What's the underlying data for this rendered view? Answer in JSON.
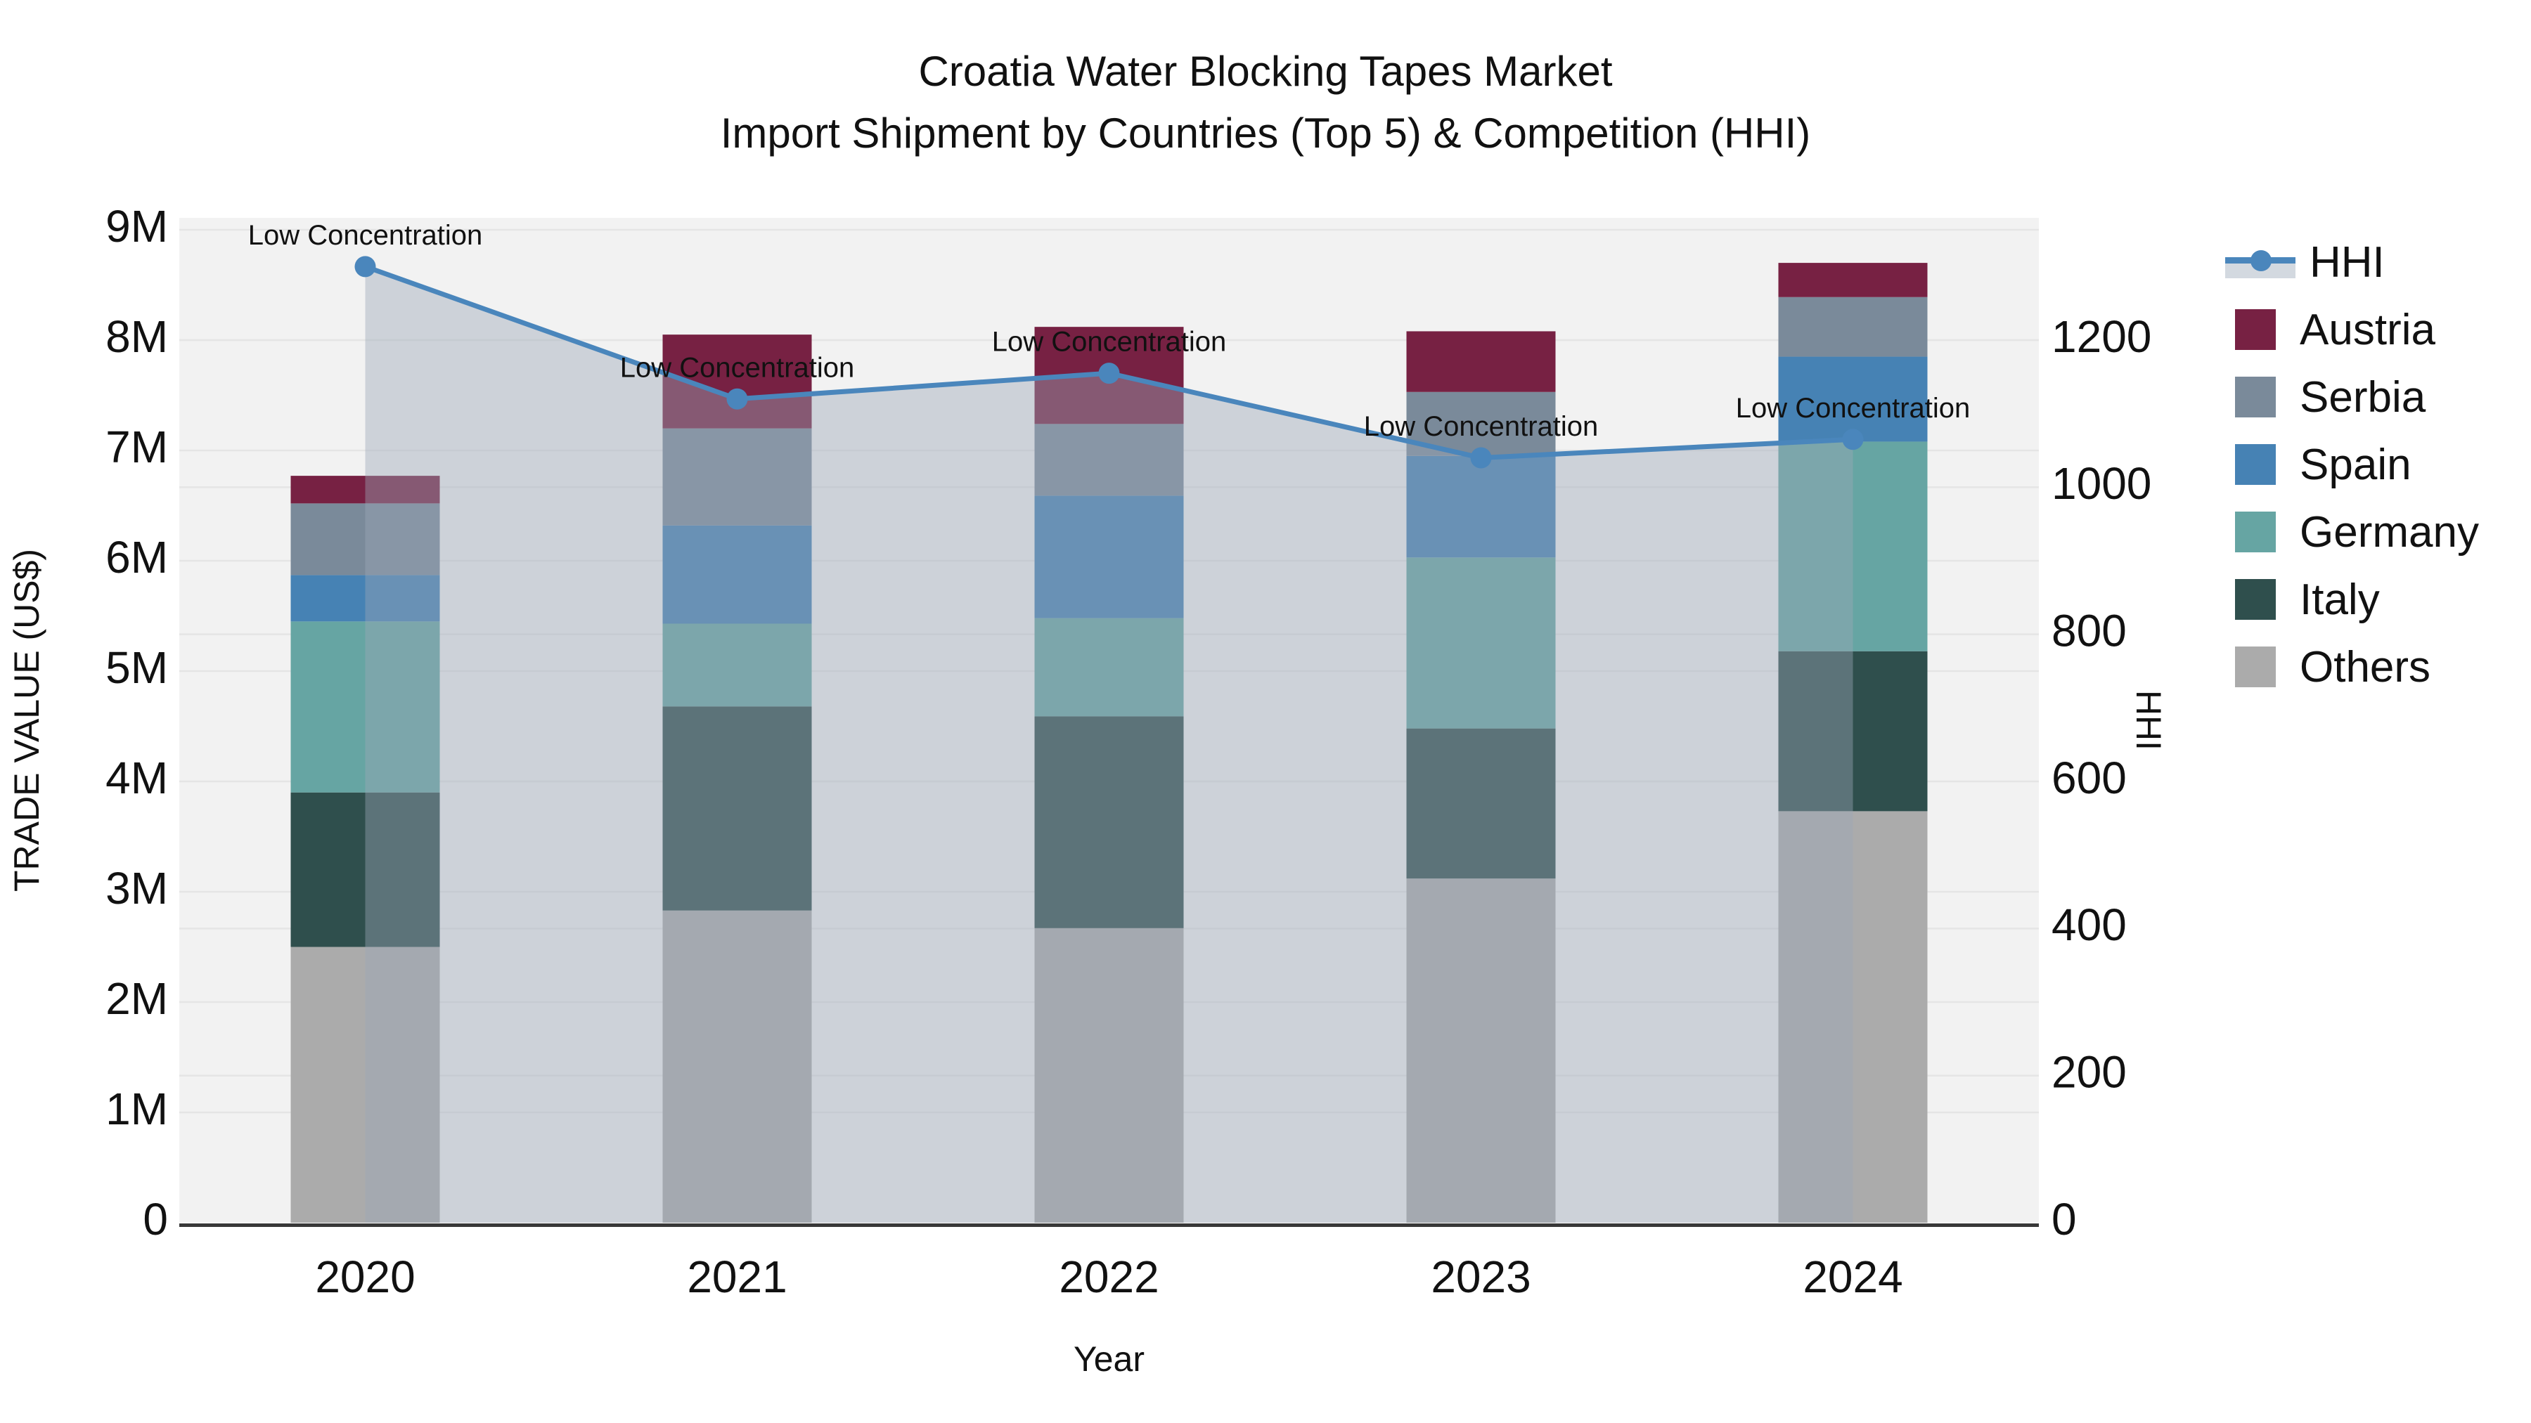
{
  "title": {
    "line1": "Croatia Water Blocking Tapes Market",
    "line2": "Import Shipment by Countries (Top 5) & Competition (HHI)"
  },
  "chart_data": {
    "type": "bar",
    "stacked": true,
    "title": "Croatia Water Blocking Tapes Market Import Shipment by Countries (Top 5) & Competition (HHI)",
    "xlabel": "Year",
    "ylabel_left": "TRADE VALUE (US$)",
    "ylabel_right": "HHI",
    "categories": [
      "2020",
      "2021",
      "2022",
      "2023",
      "2024"
    ],
    "series": [
      {
        "name": "Others",
        "color": "#ABABAB",
        "values": [
          2.5,
          2.83,
          2.67,
          3.12,
          3.73
        ]
      },
      {
        "name": "Italy",
        "color": "#2F4F4D",
        "values": [
          1.4,
          1.85,
          1.92,
          1.36,
          1.45
        ]
      },
      {
        "name": "Germany",
        "color": "#66A5A3",
        "values": [
          1.55,
          0.75,
          0.89,
          1.55,
          1.9
        ]
      },
      {
        "name": "Spain",
        "color": "#4682B4",
        "values": [
          0.42,
          0.89,
          1.11,
          0.92,
          0.77
        ]
      },
      {
        "name": "Serbia",
        "color": "#7A8A9A",
        "values": [
          0.65,
          0.88,
          0.65,
          0.58,
          0.54
        ]
      },
      {
        "name": "Austria",
        "color": "#772143",
        "values": [
          0.25,
          0.85,
          0.88,
          0.55,
          0.31
        ]
      }
    ],
    "totals_M": [
      6.77,
      8.05,
      8.12,
      8.08,
      8.7
    ],
    "line": {
      "name": "HHI",
      "axis": "right",
      "color": "#4A86BC",
      "area_fill": "rgba(155,167,183,0.42)",
      "values": [
        1300,
        1120,
        1155,
        1040,
        1065
      ]
    },
    "annotations": [
      "Low Concentration",
      "Low Concentration",
      "Low Concentration",
      "Low Concentration",
      "Low Concentration"
    ],
    "y_left": {
      "min": 0,
      "max": 9.1,
      "tick_step_M": 1,
      "tick_labels": [
        "0",
        "1M",
        "2M",
        "3M",
        "4M",
        "5M",
        "6M",
        "7M",
        "8M",
        "9M"
      ],
      "unit": "US$ millions"
    },
    "y_right": {
      "min": 0,
      "max": 1366,
      "tick_step": 200,
      "tick_labels": [
        "0",
        "200",
        "400",
        "600",
        "800",
        "1000",
        "1200"
      ]
    },
    "grid": true,
    "legend_position": "right"
  },
  "legend": {
    "items": [
      {
        "label": "HHI",
        "type": "line",
        "color": "#4A86BC"
      },
      {
        "label": "Austria",
        "type": "swatch",
        "color": "#772143"
      },
      {
        "label": "Serbia",
        "type": "swatch",
        "color": "#7A8A9A"
      },
      {
        "label": "Spain",
        "type": "swatch",
        "color": "#4682B4"
      },
      {
        "label": "Germany",
        "type": "swatch",
        "color": "#66A5A3"
      },
      {
        "label": "Italy",
        "type": "swatch",
        "color": "#2F4F4D"
      },
      {
        "label": "Others",
        "type": "swatch",
        "color": "#ABABAB"
      }
    ]
  },
  "style": {
    "plot_bg": "#F2F2F2",
    "grid_color": "#E5E5E5",
    "axis_line_color": "#383838",
    "text_color": "#111111"
  }
}
